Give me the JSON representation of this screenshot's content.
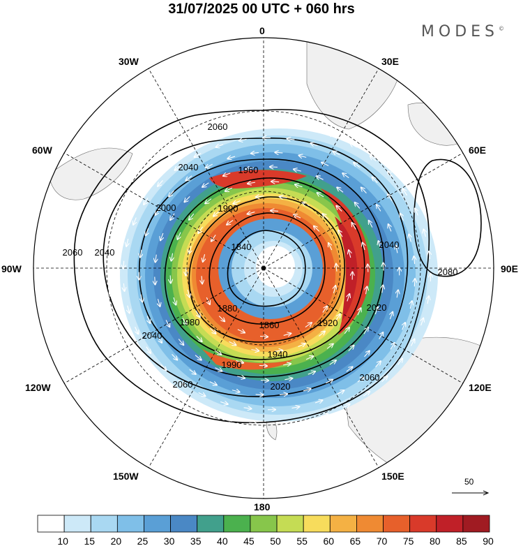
{
  "map": {
    "title": "31/07/2025  00 UTC  + 060 hrs",
    "brand": "MODES",
    "brand_mark": "©",
    "projection": "south-polar-stereographic",
    "longitude_labels": {
      "0": "0",
      "30E": "30E",
      "60E": "60E",
      "90E": "90E",
      "120E": "120E",
      "150E": "150E",
      "180": "180",
      "150W": "150W",
      "120W": "120W",
      "90W": "90W",
      "60W": "60W",
      "30W": "30W"
    },
    "contour_labels": [
      "2060",
      "2040",
      "2000",
      "1960",
      "1900",
      "1840",
      "1880",
      "1860",
      "1920",
      "1940",
      "1980",
      "2020",
      "2080",
      "1990"
    ],
    "reference_vector": "50",
    "colors": {
      "c10": "#ffffff",
      "c15": "#cde9f8",
      "c20": "#a9d8f2",
      "c25": "#7fbfe8",
      "c30": "#5a9fd6",
      "c35": "#4a88c5",
      "c40": "#41a08c",
      "c45": "#4bb14e",
      "c50": "#87c64b",
      "c55": "#c5dc54",
      "c60": "#f7dc5c",
      "c65": "#f4b144",
      "c70": "#ef8a33",
      "c75": "#e7602b",
      "c80": "#d93a2a",
      "c85": "#c02028",
      "c90": "#a01b22",
      "land": "#f0f0f0"
    }
  },
  "colorbar": {
    "ticks": [
      "10",
      "15",
      "20",
      "25",
      "30",
      "35",
      "40",
      "45",
      "50",
      "55",
      "60",
      "65",
      "70",
      "75",
      "80",
      "85",
      "90"
    ]
  }
}
